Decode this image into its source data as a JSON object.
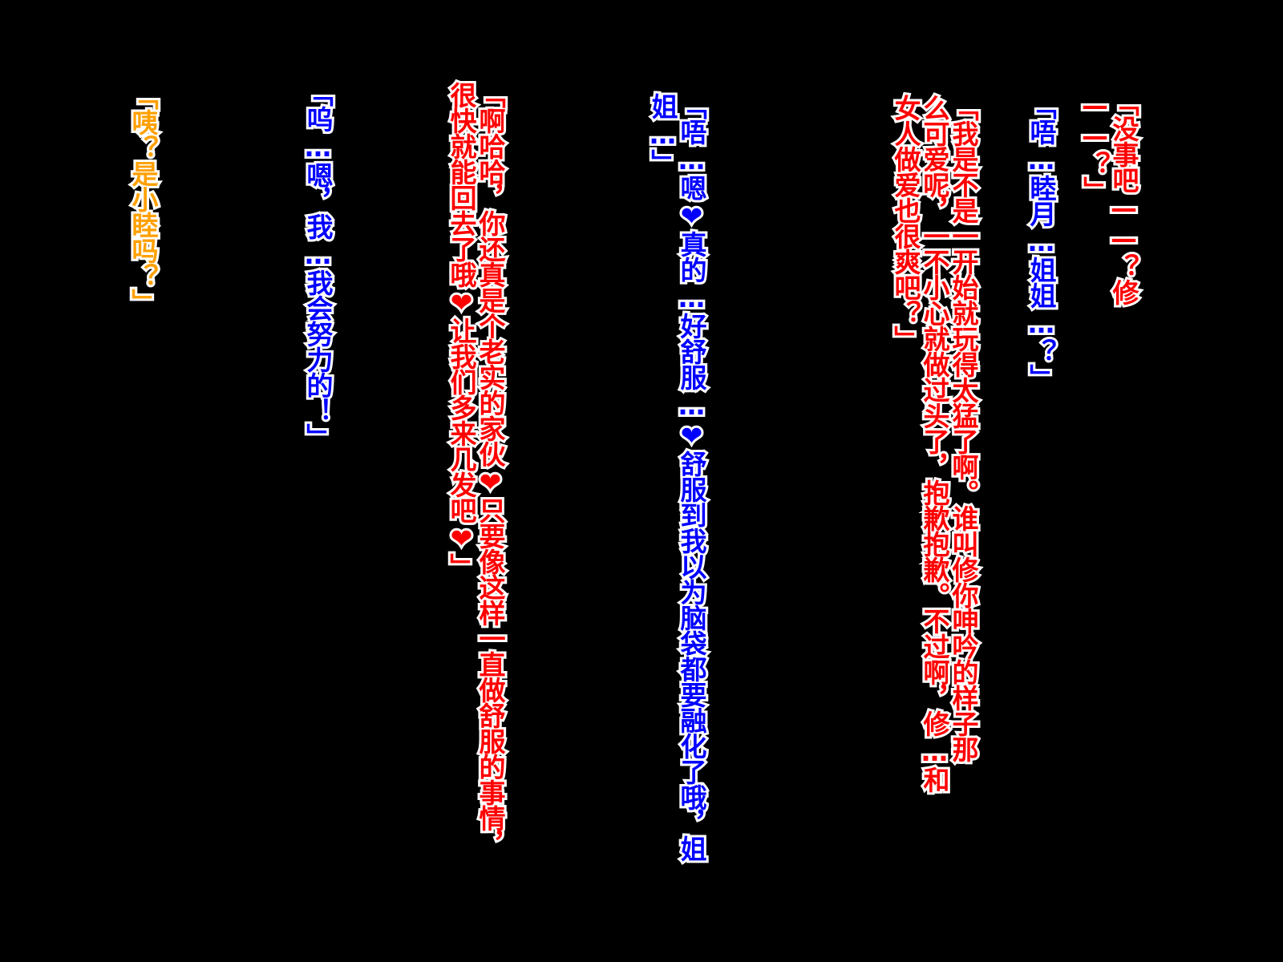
{
  "colors": {
    "background": "#000000",
    "outline": "#ffffff",
    "red": "#ff0000",
    "blue": "#0000ff",
    "orange": "#ffa000"
  },
  "lines": [
    {
      "id": "l1",
      "color": "red",
      "text": "「没事吧——？修\n——？」"
    },
    {
      "id": "l2",
      "color": "blue",
      "text": "「唔…睦月…姐姐…？」"
    },
    {
      "id": "l3",
      "color": "red",
      "text": "「我是不是一开始就玩得太猛了啊。谁叫修你呻吟的样子那\n么可爱呢，一不小心就做过头了，抱歉抱歉。不过啊，修…和\n女人做爱也很爽吧？」"
    },
    {
      "id": "l4",
      "color": "blue",
      "text": "「唔…嗯❤真的…好舒服…❤舒服到我以为脑袋都要融化了哦，姐\n姐…」"
    },
    {
      "id": "l5",
      "color": "red",
      "text": "「啊哈哈，你还真是个老实的家伙❤只要像这样一直做舒服的事情，\n很快就能回去了哦❤让我们多来几发吧❤」"
    },
    {
      "id": "l6",
      "color": "blue",
      "text": "「呜…嗯，我…我会努力的！」"
    },
    {
      "id": "l7",
      "color": "orange",
      "text": "「咦？是小睦吗？」"
    }
  ]
}
